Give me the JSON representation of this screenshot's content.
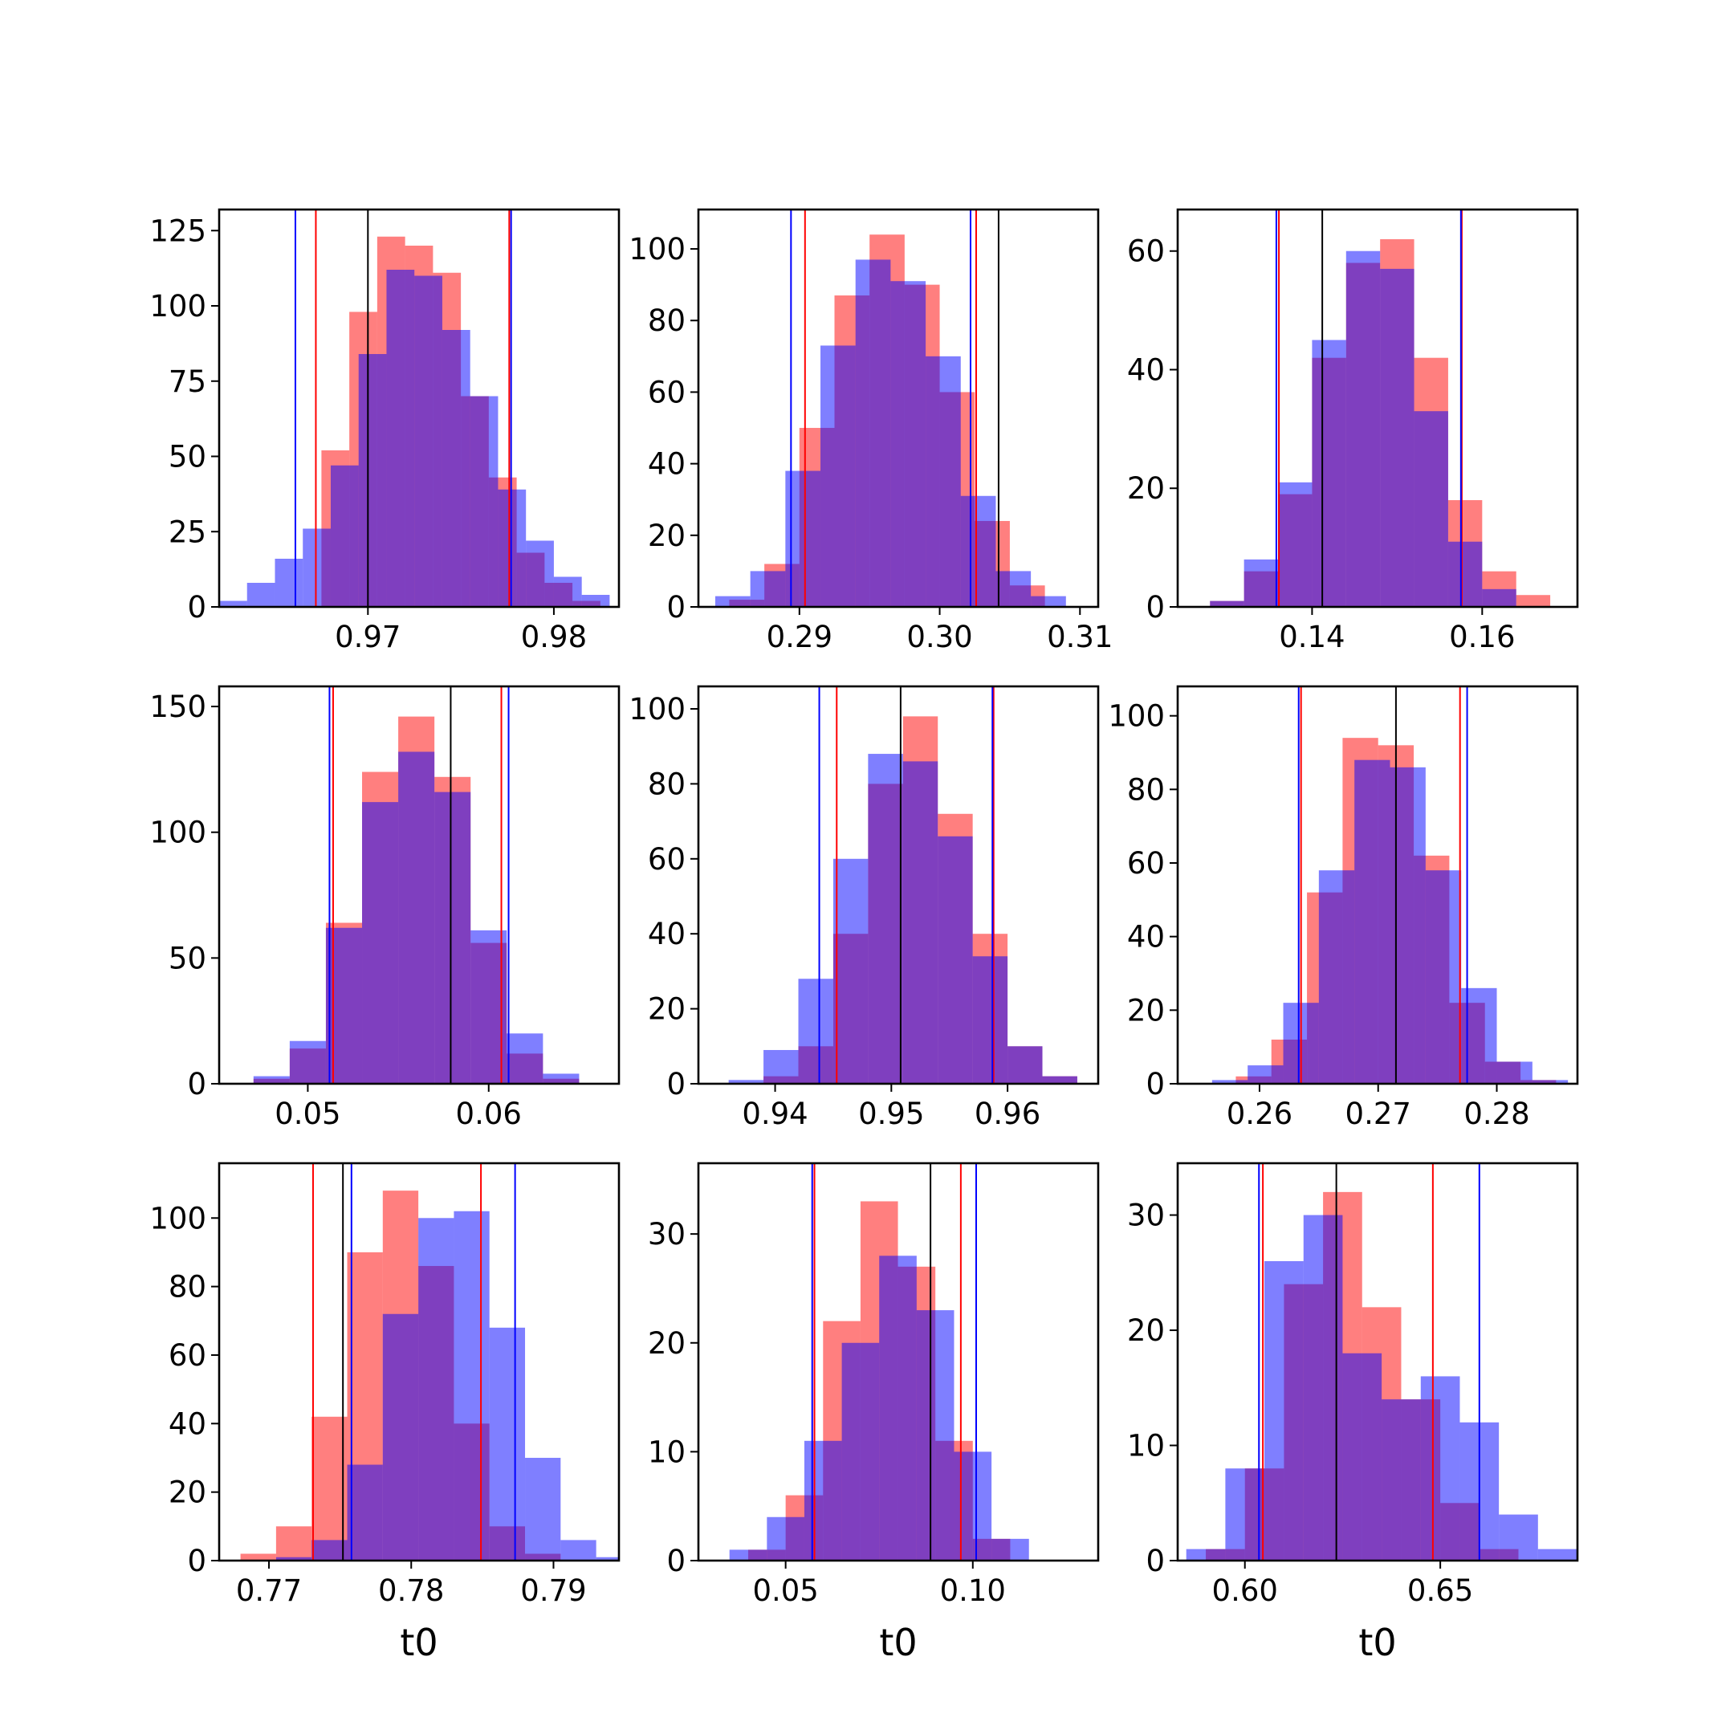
{
  "colors": {
    "red": "#ff0000",
    "blue": "#0000ff",
    "black": "#000000",
    "overlap": "#7f3fbf"
  },
  "chart_data": [
    {
      "type": "histogram",
      "row": 0,
      "col": 0,
      "xlim": [
        0.962,
        0.9835
      ],
      "ylim": [
        0,
        132
      ],
      "xticks": [
        0.97,
        0.98
      ],
      "xtick_labels": [
        "0.97",
        "0.98"
      ],
      "yticks": [
        0,
        25,
        50,
        75,
        100,
        125
      ],
      "ytick_labels": [
        "0",
        "25",
        "50",
        "75",
        "100",
        "125"
      ],
      "xlabel": "",
      "red": {
        "bins": [
          0.966,
          0.9675,
          0.969,
          0.9705,
          0.972,
          0.9735,
          0.975,
          0.9765,
          0.978,
          0.9795,
          0.981
        ],
        "counts": [
          0,
          52,
          98,
          123,
          120,
          111,
          70,
          43,
          18,
          8,
          2
        ],
        "interval": [
          0.9672,
          0.9776
        ]
      },
      "blue": {
        "bins": [
          0.962,
          0.9635,
          0.965,
          0.9665,
          0.968,
          0.9695,
          0.971,
          0.9725,
          0.974,
          0.9755,
          0.977,
          0.9785,
          0.98,
          0.9815
        ],
        "counts": [
          2,
          8,
          16,
          26,
          47,
          84,
          112,
          110,
          92,
          70,
          39,
          22,
          10,
          4
        ],
        "interval": [
          0.9661,
          0.9777
        ]
      },
      "median": 0.97
    },
    {
      "type": "histogram",
      "row": 0,
      "col": 1,
      "xlim": [
        0.2828,
        0.3113
      ],
      "ylim": [
        0,
        111
      ],
      "xticks": [
        0.29,
        0.3,
        0.31
      ],
      "xtick_labels": [
        "0.29",
        "0.30",
        "0.31"
      ],
      "yticks": [
        0,
        20,
        40,
        60,
        80,
        100
      ],
      "ytick_labels": [
        "0",
        "20",
        "40",
        "60",
        "80",
        "100"
      ],
      "xlabel": "",
      "red": {
        "bins": [
          0.285,
          0.2875,
          0.29,
          0.2925,
          0.295,
          0.2975,
          0.3,
          0.3025,
          0.305
        ],
        "counts": [
          2,
          12,
          50,
          87,
          104,
          90,
          60,
          24,
          6
        ],
        "interval": [
          0.2904,
          0.3026
        ]
      },
      "blue": {
        "bins": [
          0.284,
          0.2865,
          0.289,
          0.2915,
          0.294,
          0.2965,
          0.299,
          0.3015,
          0.304,
          0.3065
        ],
        "counts": [
          3,
          10,
          38,
          73,
          97,
          91,
          70,
          31,
          10,
          3
        ],
        "interval": [
          0.2894,
          0.3022
        ]
      },
      "median": 0.3042
    },
    {
      "type": "histogram",
      "row": 0,
      "col": 2,
      "xlim": [
        0.1242,
        0.1712
      ],
      "ylim": [
        0,
        67
      ],
      "xticks": [
        0.14,
        0.16
      ],
      "xtick_labels": [
        "0.14",
        "0.16"
      ],
      "yticks": [
        0,
        20,
        40,
        60
      ],
      "ytick_labels": [
        "0",
        "20",
        "40",
        "60"
      ],
      "xlabel": "",
      "red": {
        "bins": [
          0.128,
          0.132,
          0.136,
          0.14,
          0.144,
          0.148,
          0.152,
          0.156,
          0.16,
          0.164
        ],
        "counts": [
          1,
          6,
          19,
          42,
          58,
          62,
          42,
          18,
          6,
          2
        ],
        "interval": [
          0.1361,
          0.1576
        ]
      },
      "blue": {
        "bins": [
          0.128,
          0.132,
          0.136,
          0.14,
          0.144,
          0.148,
          0.152,
          0.156,
          0.16
        ],
        "counts": [
          1,
          8,
          21,
          45,
          60,
          57,
          33,
          11,
          3
        ],
        "interval": [
          0.1358,
          0.1575
        ]
      },
      "median": 0.1412
    },
    {
      "type": "histogram",
      "row": 1,
      "col": 0,
      "xlim": [
        0.0451,
        0.0672
      ],
      "ylim": [
        0,
        158
      ],
      "xticks": [
        0.05,
        0.06
      ],
      "xtick_labels": [
        "0.05",
        "0.06"
      ],
      "yticks": [
        0,
        50,
        100,
        150
      ],
      "ytick_labels": [
        "0",
        "50",
        "100",
        "150"
      ],
      "xlabel": "",
      "red": {
        "bins": [
          0.047,
          0.049,
          0.051,
          0.053,
          0.055,
          0.057,
          0.059,
          0.061,
          0.063
        ],
        "counts": [
          2,
          14,
          64,
          124,
          146,
          122,
          56,
          12,
          2
        ],
        "interval": [
          0.0514,
          0.0607
        ]
      },
      "blue": {
        "bins": [
          0.047,
          0.049,
          0.051,
          0.053,
          0.055,
          0.057,
          0.059,
          0.061,
          0.063
        ],
        "counts": [
          3,
          17,
          62,
          112,
          132,
          116,
          61,
          20,
          4
        ],
        "interval": [
          0.0512,
          0.0611
        ]
      },
      "median": 0.0579
    },
    {
      "type": "histogram",
      "row": 1,
      "col": 1,
      "xlim": [
        0.9334,
        0.9678
      ],
      "ylim": [
        0,
        106
      ],
      "xticks": [
        0.94,
        0.95,
        0.96
      ],
      "xtick_labels": [
        "0.94",
        "0.95",
        "0.96"
      ],
      "yticks": [
        0,
        20,
        40,
        60,
        80,
        100
      ],
      "ytick_labels": [
        "0",
        "20",
        "40",
        "60",
        "80",
        "100"
      ],
      "xlabel": "",
      "red": {
        "bins": [
          0.939,
          0.942,
          0.945,
          0.948,
          0.951,
          0.954,
          0.957,
          0.96,
          0.963
        ],
        "counts": [
          2,
          10,
          40,
          80,
          98,
          72,
          40,
          10,
          2
        ],
        "interval": [
          0.9453,
          0.9588
        ]
      },
      "blue": {
        "bins": [
          0.936,
          0.939,
          0.942,
          0.945,
          0.948,
          0.951,
          0.954,
          0.957,
          0.96,
          0.963
        ],
        "counts": [
          1,
          9,
          28,
          60,
          88,
          86,
          66,
          34,
          10,
          2
        ],
        "interval": [
          0.9438,
          0.9587
        ]
      },
      "median": 0.9508
    },
    {
      "type": "histogram",
      "row": 1,
      "col": 2,
      "xlim": [
        0.2531,
        0.2868
      ],
      "ylim": [
        0,
        108
      ],
      "xticks": [
        0.26,
        0.27,
        0.28
      ],
      "xtick_labels": [
        "0.26",
        "0.27",
        "0.28"
      ],
      "yticks": [
        0,
        20,
        40,
        60,
        80,
        100
      ],
      "ytick_labels": [
        "0",
        "20",
        "40",
        "60",
        "80",
        "100"
      ],
      "xlabel": "",
      "red": {
        "bins": [
          0.258,
          0.261,
          0.264,
          0.267,
          0.27,
          0.273,
          0.276,
          0.279,
          0.282
        ],
        "counts": [
          2,
          12,
          52,
          94,
          92,
          62,
          22,
          6,
          1
        ],
        "interval": [
          0.2635,
          0.2769
        ]
      },
      "blue": {
        "bins": [
          0.256,
          0.259,
          0.262,
          0.265,
          0.268,
          0.271,
          0.274,
          0.277,
          0.28,
          0.283
        ],
        "counts": [
          1,
          5,
          22,
          58,
          88,
          86,
          58,
          26,
          6,
          1
        ],
        "interval": [
          0.2633,
          0.2775
        ]
      },
      "median": 0.2715
    },
    {
      "type": "histogram",
      "row": 2,
      "col": 0,
      "xlim": [
        0.7665,
        0.7946
      ],
      "ylim": [
        0,
        116
      ],
      "xticks": [
        0.77,
        0.78,
        0.79
      ],
      "xtick_labels": [
        "0.77",
        "0.78",
        "0.79"
      ],
      "yticks": [
        0,
        20,
        40,
        60,
        80,
        100
      ],
      "ytick_labels": [
        "0",
        "20",
        "40",
        "60",
        "80",
        "100"
      ],
      "xlabel": "t0",
      "red": {
        "bins": [
          0.768,
          0.7705,
          0.773,
          0.7755,
          0.778,
          0.7805,
          0.783,
          0.7855,
          0.788
        ],
        "counts": [
          2,
          10,
          42,
          90,
          108,
          86,
          40,
          10,
          2
        ],
        "interval": [
          0.7731,
          0.7849
        ]
      },
      "blue": {
        "bins": [
          0.7705,
          0.773,
          0.7755,
          0.778,
          0.7805,
          0.783,
          0.7855,
          0.788,
          0.7905,
          0.793
        ],
        "counts": [
          1,
          6,
          28,
          72,
          100,
          102,
          68,
          30,
          6,
          1
        ],
        "interval": [
          0.7758,
          0.7873
        ]
      },
      "median": 0.7752
    },
    {
      "type": "histogram",
      "row": 2,
      "col": 1,
      "xlim": [
        0.0267,
        0.1335
      ],
      "ylim": [
        0,
        36.5
      ],
      "xticks": [
        0.05,
        0.1
      ],
      "xtick_labels": [
        "0.05",
        "0.10"
      ],
      "yticks": [
        0,
        10,
        20,
        30
      ],
      "ytick_labels": [
        "0",
        "10",
        "20",
        "30"
      ],
      "xlabel": "t0",
      "red": {
        "bins": [
          0.04,
          0.05,
          0.06,
          0.07,
          0.08,
          0.09,
          0.1
        ],
        "counts": [
          1,
          6,
          22,
          33,
          27,
          11,
          2
        ],
        "interval": [
          0.0577,
          0.0968
        ]
      },
      "blue": {
        "bins": [
          0.035,
          0.045,
          0.055,
          0.065,
          0.075,
          0.085,
          0.095,
          0.105
        ],
        "counts": [
          1,
          4,
          11,
          20,
          28,
          23,
          10,
          2
        ],
        "interval": [
          0.0571,
          0.1009
        ]
      },
      "median": 0.0887
    },
    {
      "type": "histogram",
      "row": 2,
      "col": 2,
      "xlim": [
        0.5828,
        0.6851
      ],
      "ylim": [
        0,
        34.5
      ],
      "xticks": [
        0.6,
        0.65
      ],
      "xtick_labels": [
        "0.60",
        "0.65"
      ],
      "yticks": [
        0,
        10,
        20,
        30
      ],
      "ytick_labels": [
        "0",
        "10",
        "20",
        "30"
      ],
      "xlabel": "t0",
      "red": {
        "bins": [
          0.59,
          0.6,
          0.61,
          0.62,
          0.63,
          0.64,
          0.65,
          0.66
        ],
        "counts": [
          1,
          8,
          24,
          32,
          22,
          14,
          5,
          1
        ],
        "interval": [
          0.6046,
          0.6481
        ]
      },
      "blue": {
        "bins": [
          0.585,
          0.595,
          0.605,
          0.615,
          0.625,
          0.635,
          0.645,
          0.655,
          0.665,
          0.675
        ],
        "counts": [
          1,
          8,
          26,
          30,
          18,
          14,
          16,
          12,
          4,
          1
        ],
        "interval": [
          0.6036,
          0.66
        ]
      },
      "median": 0.6234
    }
  ]
}
